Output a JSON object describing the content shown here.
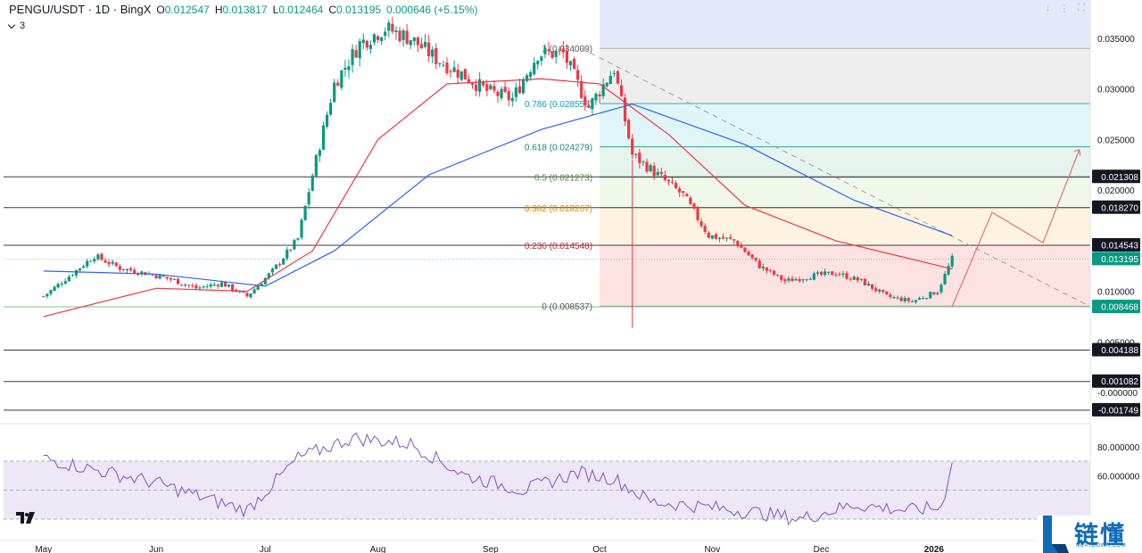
{
  "header": {
    "symbol": "PENGU/USDT · 1D · BingX",
    "open_label": "O",
    "open": "0.012547",
    "high_label": "H",
    "high": "0.013817",
    "low_label": "L",
    "low": "0.012464",
    "close_label": "C",
    "close": "0.013195",
    "change": "0.000646 (+5.15%)"
  },
  "indicators": {
    "count": "3"
  },
  "colors": {
    "up": "#089981",
    "down": "#f23645",
    "ma_fast": "#f23645",
    "ma_slow": "#2962ff",
    "rsi": "#7e57c2",
    "rsi_band": "#ede7f6",
    "fib_0": "#fde2e2",
    "fib_236": "#fef3e0",
    "fib_382": "#f0f8eb",
    "fib_5": "#e6f4ee",
    "fib_618": "#e0f5f7",
    "fib_786": "#eeeeee",
    "fib_top": "#e3e9fb"
  },
  "chart_data": [
    {
      "type": "candlestick",
      "title": "PENGU/USDT · 1D · BingX",
      "x_ticks": [
        "May",
        "Jun",
        "Jul",
        "Aug",
        "Sep",
        "Oct",
        "Nov",
        "Dec",
        "2026"
      ],
      "y_ticks": [
        "0.035000",
        "0.030000",
        "0.025000",
        "0.020000",
        "0.010000",
        "0.005000",
        "-0.000000"
      ],
      "ylim": [
        -0.00175,
        0.037
      ],
      "price_marks": [
        {
          "label": "0.021308",
          "value": 0.021308,
          "style": "dark"
        },
        {
          "label": "0.018270",
          "value": 0.01827,
          "style": "dark"
        },
        {
          "label": "0.014543",
          "value": 0.014543,
          "style": "dark"
        },
        {
          "label": "0.013195",
          "value": 0.013195,
          "style": "green"
        },
        {
          "label": "0.008468",
          "value": 0.008468,
          "style": "green"
        },
        {
          "label": "0.004188",
          "value": 0.004188,
          "style": "dark"
        },
        {
          "label": "0.001082",
          "value": 0.001082,
          "style": "dark"
        },
        {
          "label": "-0.001749",
          "value": -0.001749,
          "style": "dark"
        }
      ],
      "fibonacci": [
        {
          "ratio": "0",
          "value": 0.008537,
          "label": "0 (0.008537)",
          "color": "#555555"
        },
        {
          "ratio": "0.236",
          "value": 0.014548,
          "label": "0.236 (0.014548)",
          "color": "#c62828"
        },
        {
          "ratio": "0.382",
          "value": 0.018267,
          "label": "0.382 (0.018267)",
          "color": "#d98c00"
        },
        {
          "ratio": "0.5",
          "value": 0.021273,
          "label": "0.5 (0.021273)",
          "color": "#4e8d3a"
        },
        {
          "ratio": "0.618",
          "value": 0.024279,
          "label": "0.618 (0.024279)",
          "color": "#138a6b"
        },
        {
          "ratio": "0.786",
          "value": 0.028558,
          "label": "0.786 (0.028558)",
          "color": "#0a9eb5"
        },
        {
          "ratio": "1",
          "value": 0.034009,
          "label": "1 (0.034009)",
          "color": "#555555"
        }
      ],
      "series": [
        {
          "name": "close",
          "points": [
            [
              "2025-05-01",
              0.0095
            ],
            [
              "2025-05-08",
              0.0115
            ],
            [
              "2025-05-15",
              0.0135
            ],
            [
              "2025-05-22",
              0.0123
            ],
            [
              "2025-05-29",
              0.0118
            ],
            [
              "2025-06-05",
              0.0112
            ],
            [
              "2025-06-12",
              0.0103
            ],
            [
              "2025-06-19",
              0.0108
            ],
            [
              "2025-06-26",
              0.0095
            ],
            [
              "2025-07-03",
              0.012
            ],
            [
              "2025-07-10",
              0.0152
            ],
            [
              "2025-07-14",
              0.0215
            ],
            [
              "2025-07-20",
              0.0305
            ],
            [
              "2025-07-27",
              0.0345
            ],
            [
              "2025-08-03",
              0.036
            ],
            [
              "2025-08-10",
              0.035
            ],
            [
              "2025-08-17",
              0.033
            ],
            [
              "2025-08-24",
              0.0315
            ],
            [
              "2025-08-31",
              0.0298
            ],
            [
              "2025-09-07",
              0.029
            ],
            [
              "2025-09-14",
              0.0335
            ],
            [
              "2025-09-21",
              0.0335
            ],
            [
              "2025-09-28",
              0.0282
            ],
            [
              "2025-10-05",
              0.032
            ],
            [
              "2025-10-10",
              0.0235
            ],
            [
              "2025-10-17",
              0.0215
            ],
            [
              "2025-10-24",
              0.0195
            ],
            [
              "2025-10-31",
              0.0155
            ],
            [
              "2025-11-07",
              0.015
            ],
            [
              "2025-11-14",
              0.0125
            ],
            [
              "2025-11-21",
              0.011
            ],
            [
              "2025-11-28",
              0.0115
            ],
            [
              "2025-12-05",
              0.0118
            ],
            [
              "2025-12-12",
              0.011
            ],
            [
              "2025-12-19",
              0.0095
            ],
            [
              "2025-12-26",
              0.009
            ],
            [
              "2026-01-02",
              0.01
            ],
            [
              "2026-01-06",
              0.0132
            ]
          ]
        },
        {
          "name": "ma_fast",
          "points": [
            [
              "2025-05-01",
              0.0075
            ],
            [
              "2025-06-01",
              0.0103
            ],
            [
              "2025-06-26",
              0.01
            ],
            [
              "2025-07-14",
              0.014
            ],
            [
              "2025-08-01",
              0.025
            ],
            [
              "2025-08-20",
              0.0305
            ],
            [
              "2025-09-15",
              0.031
            ],
            [
              "2025-10-01",
              0.0305
            ],
            [
              "2025-10-20",
              0.0255
            ],
            [
              "2025-11-10",
              0.0185
            ],
            [
              "2025-12-05",
              0.015
            ],
            [
              "2026-01-06",
              0.0122
            ]
          ]
        },
        {
          "name": "ma_slow",
          "points": [
            [
              "2025-05-01",
              0.012
            ],
            [
              "2025-06-01",
              0.0117
            ],
            [
              "2025-07-01",
              0.0105
            ],
            [
              "2025-07-20",
              0.014
            ],
            [
              "2025-08-15",
              0.0215
            ],
            [
              "2025-09-15",
              0.026
            ],
            [
              "2025-10-10",
              0.0285
            ],
            [
              "2025-11-10",
              0.0245
            ],
            [
              "2025-12-10",
              0.019
            ],
            [
              "2026-01-06",
              0.0155
            ]
          ]
        }
      ]
    },
    {
      "type": "line",
      "title": "",
      "y_ticks": [
        "80.000000",
        "60.000000"
      ],
      "ylim": [
        25,
        90
      ],
      "band": [
        30,
        70
      ],
      "series": [
        {
          "name": "RSI",
          "points": [
            [
              "2025-05-01",
              72
            ],
            [
              "2025-05-15",
              64
            ],
            [
              "2025-06-01",
              55
            ],
            [
              "2025-06-15",
              44
            ],
            [
              "2025-06-26",
              36
            ],
            [
              "2025-07-10",
              72
            ],
            [
              "2025-07-25",
              86
            ],
            [
              "2025-08-10",
              82
            ],
            [
              "2025-08-25",
              60
            ],
            [
              "2025-09-10",
              50
            ],
            [
              "2025-09-25",
              62
            ],
            [
              "2025-10-05",
              58
            ],
            [
              "2025-10-15",
              42
            ],
            [
              "2025-11-01",
              38
            ],
            [
              "2025-11-15",
              34
            ],
            [
              "2025-11-25",
              30
            ],
            [
              "2025-12-10",
              40
            ],
            [
              "2025-12-25",
              36
            ],
            [
              "2026-01-03",
              38
            ],
            [
              "2026-01-06",
              69
            ]
          ]
        }
      ]
    }
  ],
  "watermark": {
    "name": "链懂",
    "url": "NEATDOWN.COM"
  }
}
